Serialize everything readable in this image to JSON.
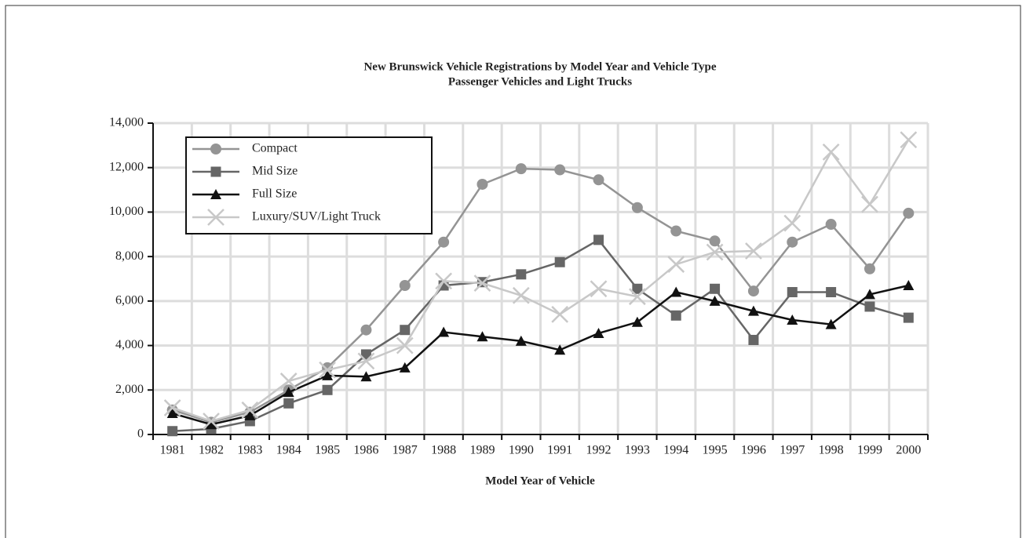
{
  "chart_data": {
    "type": "line",
    "title": "New Brunswick Vehicle Registrations by Model Year and Vehicle Type",
    "subtitle": "Passenger Vehicles and Light Trucks",
    "x_label": "Model Year of Vehicle",
    "categories": [
      "1981",
      "1982",
      "1983",
      "1984",
      "1985",
      "1986",
      "1987",
      "1988",
      "1989",
      "1990",
      "1991",
      "1992",
      "1993",
      "1994",
      "1995",
      "1996",
      "1997",
      "1998",
      "1999",
      "2000"
    ],
    "ylim": [
      0,
      14000
    ],
    "yticks": [
      0,
      {
        "value": 2000,
        "label": "2,000"
      },
      {
        "value": 4000,
        "label": "4,000"
      },
      {
        "value": 6000,
        "label": "6,000"
      },
      {
        "value": 8000,
        "label": "8,000"
      },
      {
        "value": 10000,
        "label": "10,000"
      },
      {
        "value": 12000,
        "label": "12,000"
      },
      {
        "value": 14000,
        "label": "14,000"
      }
    ],
    "grid": true,
    "legend": "upper left",
    "series": [
      {
        "name": "Compact",
        "color": "#949494",
        "marker": "circle",
        "values": [
          1100,
          550,
          1000,
          2000,
          3000,
          4700,
          6700,
          8650,
          11250,
          11950,
          11900,
          11450,
          10200,
          9150,
          8700,
          6450,
          8650,
          9450,
          7450,
          9950
        ]
      },
      {
        "name": "Mid Size",
        "color": "#666666",
        "marker": "square",
        "values": [
          150,
          250,
          600,
          1400,
          2000,
          3600,
          4700,
          6700,
          6850,
          7200,
          7750,
          8750,
          6550,
          5350,
          6550,
          4250,
          6400,
          6400,
          5750,
          5250
        ]
      },
      {
        "name": "Full Size",
        "color": "#111111",
        "marker": "triangle",
        "values": [
          950,
          450,
          850,
          1900,
          2650,
          2600,
          3000,
          4600,
          4400,
          4200,
          3800,
          4550,
          5050,
          6400,
          6000,
          5550,
          5150,
          4950,
          6300,
          6700
        ]
      },
      {
        "name": "Luxury/SUV/Light Truck",
        "color": "#c8c8c8",
        "marker": "x",
        "values": [
          1200,
          600,
          1100,
          2400,
          2900,
          3300,
          4000,
          6900,
          6800,
          6250,
          5400,
          6550,
          6200,
          7650,
          8200,
          8250,
          9500,
          12700,
          10350,
          13250
        ]
      }
    ]
  }
}
